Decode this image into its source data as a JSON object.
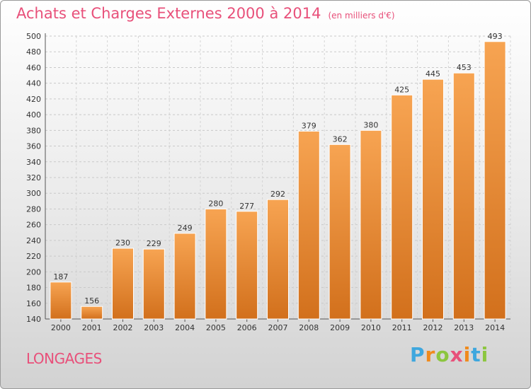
{
  "chart_title": "Achats et Charges Externes 2000 à 2014",
  "chart_subtitle": "(en milliers d'€)",
  "place_name": "LONGAGES",
  "brand": {
    "text": "Proxiti"
  },
  "colors": {
    "bar_top": "#f7a452",
    "bar_bottom": "#d2701c",
    "accent": "#e8507a"
  },
  "chart_data": {
    "type": "bar",
    "title": "Achats et Charges Externes 2000 à 2014",
    "subtitle": "(en milliers d'€)",
    "categories": [
      "2000",
      "2001",
      "2002",
      "2003",
      "2004",
      "2005",
      "2006",
      "2007",
      "2008",
      "2009",
      "2010",
      "2011",
      "2012",
      "2013",
      "2014"
    ],
    "values": [
      187,
      156,
      230,
      229,
      249,
      280,
      277,
      292,
      379,
      362,
      380,
      425,
      445,
      453,
      493
    ],
    "ylim": [
      140,
      500
    ],
    "yticks": [
      140,
      160,
      180,
      200,
      220,
      240,
      260,
      280,
      300,
      320,
      340,
      360,
      380,
      400,
      420,
      440,
      460,
      480,
      500
    ],
    "grid": true,
    "data_labels": true
  }
}
